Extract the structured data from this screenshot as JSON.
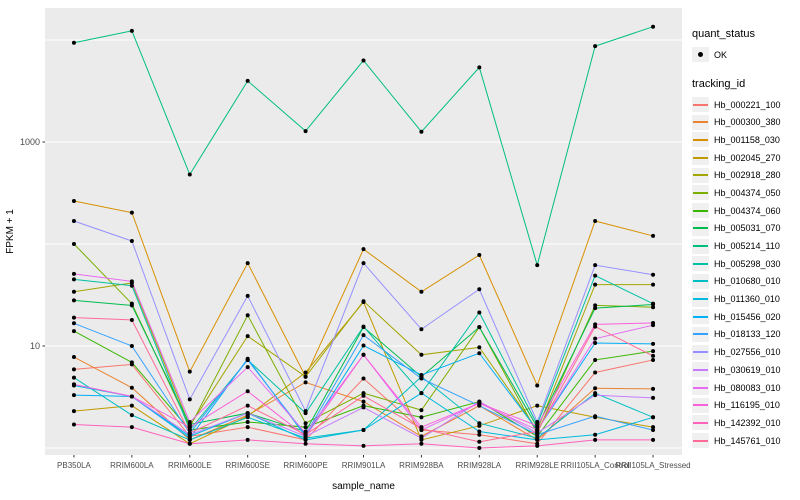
{
  "figure": {
    "panel_bg": "#EBEBEB",
    "grid_color": "#FFFFFF",
    "tick_label_color": "#4D4D4D",
    "axis_title_color": "#000000",
    "point_color": "#000000"
  },
  "y_axis": {
    "label": "FPKM + 1",
    "tick_labels": [
      "1000",
      "10"
    ]
  },
  "x_axis": {
    "label": "sample_name"
  },
  "legend": {
    "quant_title": "quant_status",
    "quant_label": "OK",
    "tracking_title": "tracking_id"
  },
  "chart_data": {
    "type": "line",
    "y_scale": "log10",
    "xlabel": "sample_name",
    "ylabel": "FPKM + 1",
    "ylim": [
      0.85,
      20000
    ],
    "y_ticks_labeled": [
      10,
      1000
    ],
    "y_gridlines": [
      1,
      10,
      100,
      1000,
      10000
    ],
    "grid": true,
    "legend_position": "right",
    "point_legend": {
      "title": "quant_status",
      "label": "OK"
    },
    "categories": [
      "PB350LA",
      "RRIM600LA",
      "RRIM600LE",
      "RRIM600SE",
      "RRIM600PE",
      "RRIM901LA",
      "RRIM928BA",
      "RRIM928LA",
      "RRIM928LE",
      "RRII105LA_Control",
      "RRII105LA_Stressed"
    ],
    "series": [
      {
        "name": "Hb_000221_100",
        "color": "#F8766D",
        "values": [
          5.9,
          6.6,
          1.3,
          1.6,
          1.2,
          4.8,
          1.5,
          1.35,
          1.1,
          5.5,
          7.3
        ]
      },
      {
        "name": "Hb_000300_380",
        "color": "#EA8331",
        "values": [
          7.8,
          3.9,
          1.2,
          2.1,
          4.4,
          2.85,
          1.3,
          2.6,
          1.2,
          3.85,
          3.8
        ]
      },
      {
        "name": "Hb_001158_030",
        "color": "#D89000",
        "values": [
          264,
          203,
          5.6,
          65,
          5.0,
          89,
          34,
          78,
          4.1,
          168,
          120
        ]
      },
      {
        "name": "Hb_002045_270",
        "color": "#C09B00",
        "values": [
          2.3,
          2.6,
          1.1,
          2.05,
          5.5,
          27,
          1.2,
          1.65,
          2.6,
          2.0,
          1.6
        ]
      },
      {
        "name": "Hb_002918_280",
        "color": "#A3A500",
        "values": [
          34,
          41.5,
          1.65,
          12.5,
          5.0,
          27.5,
          8.2,
          9.7,
          1.5,
          40,
          40
        ]
      },
      {
        "name": "Hb_004374_050",
        "color": "#7CAE00",
        "values": [
          100,
          26,
          1.6,
          20,
          1.75,
          3.45,
          2.35,
          15.3,
          1.4,
          25,
          24
        ]
      },
      {
        "name": "Hb_004374_060",
        "color": "#39B600",
        "values": [
          14,
          6.9,
          1.5,
          1.8,
          1.6,
          2.6,
          2.0,
          2.85,
          1.3,
          7.3,
          8.9
        ]
      },
      {
        "name": "Hb_005031_070",
        "color": "#00BB4E",
        "values": [
          28,
          25,
          1.7,
          2.2,
          1.45,
          15.3,
          5.0,
          15.3,
          1.6,
          23.5,
          25.5
        ]
      },
      {
        "name": "Hb_005214_110",
        "color": "#00BF7D",
        "values": [
          9400,
          12300,
          480,
          3970,
          1280,
          6300,
          1260,
          5390,
          62,
          8700,
          13500
        ]
      },
      {
        "name": "Hb_005298_030",
        "color": "#00C1A3",
        "values": [
          45,
          39,
          1.5,
          7.3,
          2.2,
          15.5,
          3.45,
          21.3,
          1.7,
          49,
          26
        ]
      },
      {
        "name": "Hb_010680_010",
        "color": "#00BFC4",
        "values": [
          4.9,
          2.1,
          1.2,
          2.0,
          1.25,
          1.5,
          5.0,
          1.75,
          1.25,
          3.45,
          2.0
        ]
      },
      {
        "name": "Hb_011360_010",
        "color": "#00BAE0",
        "values": [
          4.1,
          3.2,
          1.3,
          2.2,
          1.2,
          1.5,
          3.45,
          1.45,
          1.2,
          1.35,
          2.0
        ]
      },
      {
        "name": "Hb_015456_020",
        "color": "#00B0F6",
        "values": [
          3.3,
          3.2,
          1.25,
          7.5,
          1.3,
          10.1,
          5.2,
          8.5,
          1.5,
          10.7,
          10.5
        ]
      },
      {
        "name": "Hb_018133_120",
        "color": "#35A2FF",
        "values": [
          16.7,
          10,
          1.4,
          7.3,
          1.35,
          12.8,
          4.8,
          2.6,
          1.35,
          2.05,
          1.5
        ]
      },
      {
        "name": "Hb_027556_010",
        "color": "#9590FF",
        "values": [
          168,
          107,
          3.0,
          31,
          2.3,
          65,
          14.6,
          36,
          1.8,
          62,
          50
        ]
      },
      {
        "name": "Hb_030619_010",
        "color": "#C77CFF",
        "values": [
          4.2,
          3.2,
          1.35,
          2.2,
          1.3,
          2.5,
          1.25,
          2.85,
          1.4,
          3.3,
          3.1
        ]
      },
      {
        "name": "Hb_080083_010",
        "color": "#E76BF3",
        "values": [
          51,
          43,
          1.8,
          6.2,
          1.4,
          8.2,
          1.5,
          2.75,
          1.5,
          11.8,
          16
        ]
      },
      {
        "name": "Hb_116195_010",
        "color": "#FA62DB",
        "values": [
          4.2,
          3.2,
          1.6,
          3.6,
          1.3,
          8.2,
          1.6,
          2.75,
          1.65,
          16.3,
          16.8
        ]
      },
      {
        "name": "Hb_142392_010",
        "color": "#FF62BC",
        "values": [
          1.7,
          1.6,
          1.1,
          1.2,
          1.1,
          1.05,
          1.1,
          1.0,
          1.05,
          1.2,
          1.2
        ]
      },
      {
        "name": "Hb_145761_010",
        "color": "#FF6A98",
        "values": [
          19,
          18,
          1.4,
          2.6,
          1.35,
          3.25,
          1.55,
          1.15,
          1.45,
          15.5,
          8.0
        ]
      }
    ]
  }
}
